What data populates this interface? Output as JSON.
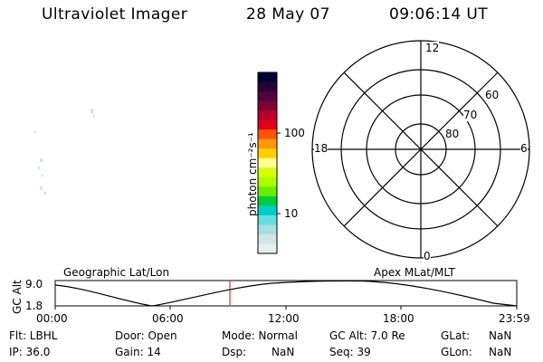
{
  "header": {
    "title": "Ultraviolet Imager",
    "date": "28 May 07",
    "time": "09:06:14 UT"
  },
  "colorbar": {
    "unit_label": "photon cm⁻²s⁻¹",
    "ticks": [
      "100",
      "10"
    ],
    "colors": [
      "#000033",
      "#2a0036",
      "#55003f",
      "#800036",
      "#b8002a",
      "#e0001a",
      "#ff5500",
      "#ff9900",
      "#ffd000",
      "#ffff99",
      "#d8ff00",
      "#a8ff00",
      "#66ee00",
      "#00cc44",
      "#00cccc",
      "#66dddd",
      "#aadddd",
      "#d0e6e6",
      "#e6eeee"
    ]
  },
  "polar_plot": {
    "mlt_labels": [
      "12",
      "18",
      "6",
      "0"
    ],
    "mlat_labels": [
      "60",
      "70",
      "80"
    ]
  },
  "timeline": {
    "left_label": "Geographic Lat/Lon",
    "right_label": "Apex MLat/MLT",
    "axis_label": "GC Alt",
    "y_ticks": [
      "9.0",
      "1.8"
    ],
    "x_ticks": [
      "00:00",
      "06:00",
      "12:00",
      "18:00",
      "23:59"
    ],
    "marker_color": "#cc0000"
  },
  "status": {
    "row1": {
      "filt": "Flt: LBHL",
      "door": "Door: Open",
      "mode": "Mode: Normal",
      "gcalt": "GC Alt: 7.0 Re",
      "glat_label": "GLat:",
      "glat_value": "NaN"
    },
    "row2": {
      "ip": "IP: 36.0",
      "gain": "Gain: 14",
      "dsp_label": "Dsp:",
      "dsp_value": "NaN",
      "seq": "Seq: 39",
      "glon_label": "GLon:",
      "glon_value": "NaN"
    }
  }
}
